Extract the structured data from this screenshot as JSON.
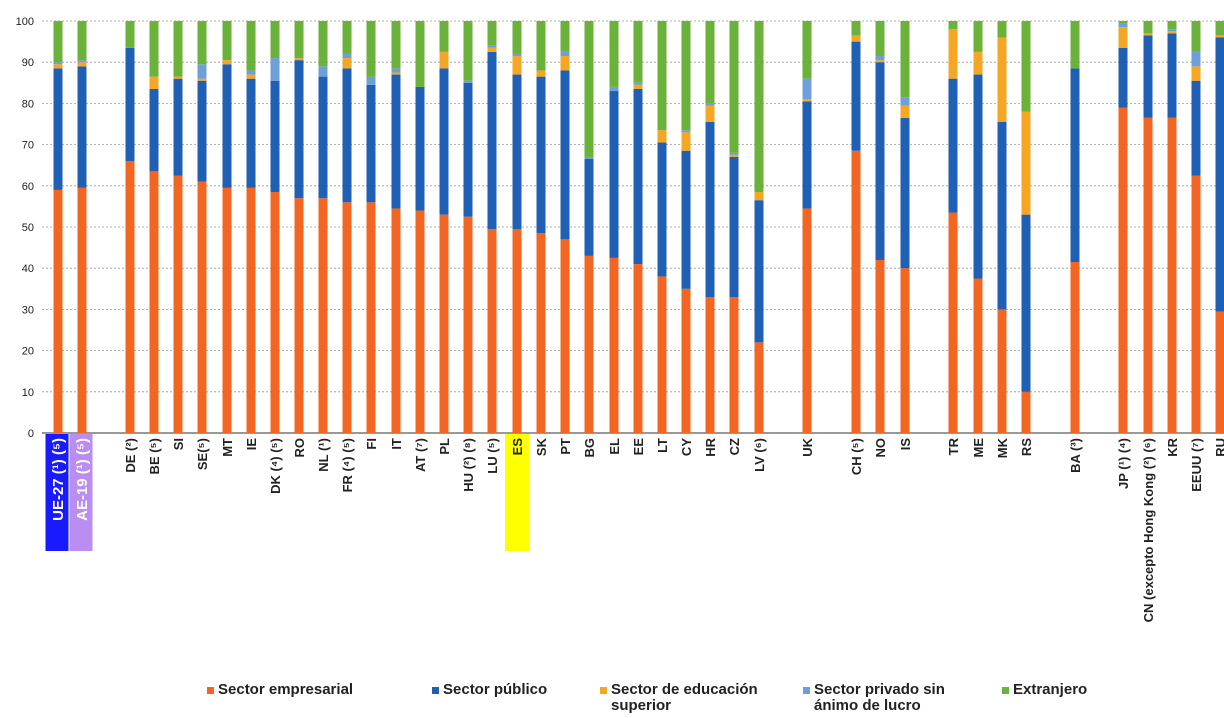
{
  "chart_data": {
    "type": "bar",
    "stacked": true,
    "ylim": [
      0,
      100
    ],
    "yticks": [
      0,
      10,
      20,
      30,
      40,
      50,
      60,
      70,
      80,
      90,
      100
    ],
    "grid": true,
    "legend_position": "bottom",
    "categories": [
      "UE-27 (¹) (⁵)",
      "AE-19 (¹) (⁵)",
      "DE (²)",
      "BE (⁵)",
      "SI",
      "SE(⁵)",
      "MT",
      "IE",
      "DK (⁴) (⁵)",
      "RO",
      "NL (¹)",
      "FR (⁴) (⁵)",
      "FI",
      "IT",
      "AT (⁷)",
      "PL",
      "HU (²) (⁸)",
      "LU (⁵)",
      "ES",
      "SK",
      "PT",
      "BG",
      "EL",
      "EE",
      "LT",
      "CY",
      "HR",
      "CZ",
      "LV (⁶)",
      "UK",
      "CH (⁵)",
      "NO",
      "IS",
      "TR",
      "ME",
      "MK",
      "RS",
      "BA (³)",
      "JP (¹) (⁴)",
      "CN (excepto Hong Kong (²) (⁶)",
      "KR",
      "EEUU (⁷)",
      "RU"
    ],
    "category_colors": {
      "UE-27 (¹) (⁵)": "#1a1aff",
      "AE-19 (¹) (⁵)": "#b98ef0",
      "ES": "#ffff00"
    },
    "series": [
      {
        "name": "Sector empresarial",
        "color": "#f26522",
        "values": [
          59,
          59.5,
          66,
          63.5,
          62.5,
          61,
          59.5,
          59.5,
          58.5,
          57,
          57,
          56,
          56,
          54.5,
          54,
          53,
          52.5,
          49.5,
          49.5,
          48.5,
          47,
          43,
          42.5,
          41,
          38,
          35,
          33,
          33,
          22,
          54.5,
          68.5,
          42,
          40,
          53.5,
          37.5,
          30,
          10,
          41.5,
          79,
          76.5,
          76.5,
          62.5,
          29.5
        ]
      },
      {
        "name": "Sector público",
        "color": "#1f5fb4",
        "values": [
          29.5,
          29.5,
          27.5,
          20,
          23.5,
          24.5,
          30,
          26.5,
          27,
          33.5,
          29.5,
          32.5,
          28.5,
          32.5,
          30,
          35.5,
          32.5,
          43,
          37.5,
          38,
          41,
          23.5,
          40.5,
          42.5,
          32.5,
          33.5,
          42.5,
          34,
          34.5,
          26,
          26.5,
          48,
          36.5,
          32.5,
          49.5,
          45.5,
          43,
          47,
          14.5,
          20,
          20.5,
          23,
          66.5
        ]
      },
      {
        "name": "Sector de educación superior",
        "color": "#f5a623",
        "values": [
          1,
          1,
          0,
          3,
          0.5,
          0.5,
          1,
          1,
          0,
          0.5,
          0,
          2.5,
          0,
          0.5,
          0,
          4,
          0,
          1,
          4.5,
          1.5,
          3.5,
          0,
          0,
          1,
          3,
          4.5,
          4,
          0.5,
          2,
          0.5,
          1.5,
          0.5,
          3,
          12,
          5.5,
          20.5,
          25,
          0,
          5,
          0.5,
          0.5,
          3.5,
          0.5
        ]
      },
      {
        "name": "Sector privado sin ánimo de lucro",
        "color": "#6f9fd8",
        "values": [
          0.5,
          0.5,
          0,
          0,
          0,
          3.5,
          0,
          1,
          5.5,
          0,
          2.5,
          1,
          2,
          1,
          0,
          0,
          0.5,
          0.5,
          0.5,
          0,
          1,
          0.5,
          1,
          0.5,
          0,
          0.5,
          0.5,
          0.5,
          0,
          5,
          0,
          1,
          2,
          0,
          0,
          0,
          0,
          0,
          1,
          0,
          0.5,
          3.5,
          0
        ]
      },
      {
        "name": "Extranjero",
        "color": "#6ab23a",
        "values": [
          10,
          9.5,
          6.5,
          13.5,
          13.5,
          10.5,
          9.5,
          12,
          9,
          9,
          11,
          8,
          13.5,
          11.5,
          16,
          7.5,
          14.5,
          6,
          8,
          12,
          7.5,
          33,
          16,
          15,
          26.5,
          26.5,
          20,
          32,
          41.5,
          14,
          3.5,
          8.5,
          18.5,
          2,
          7.5,
          4,
          22,
          11.5,
          0.5,
          3,
          2,
          7.5,
          3.5
        ]
      }
    ]
  }
}
